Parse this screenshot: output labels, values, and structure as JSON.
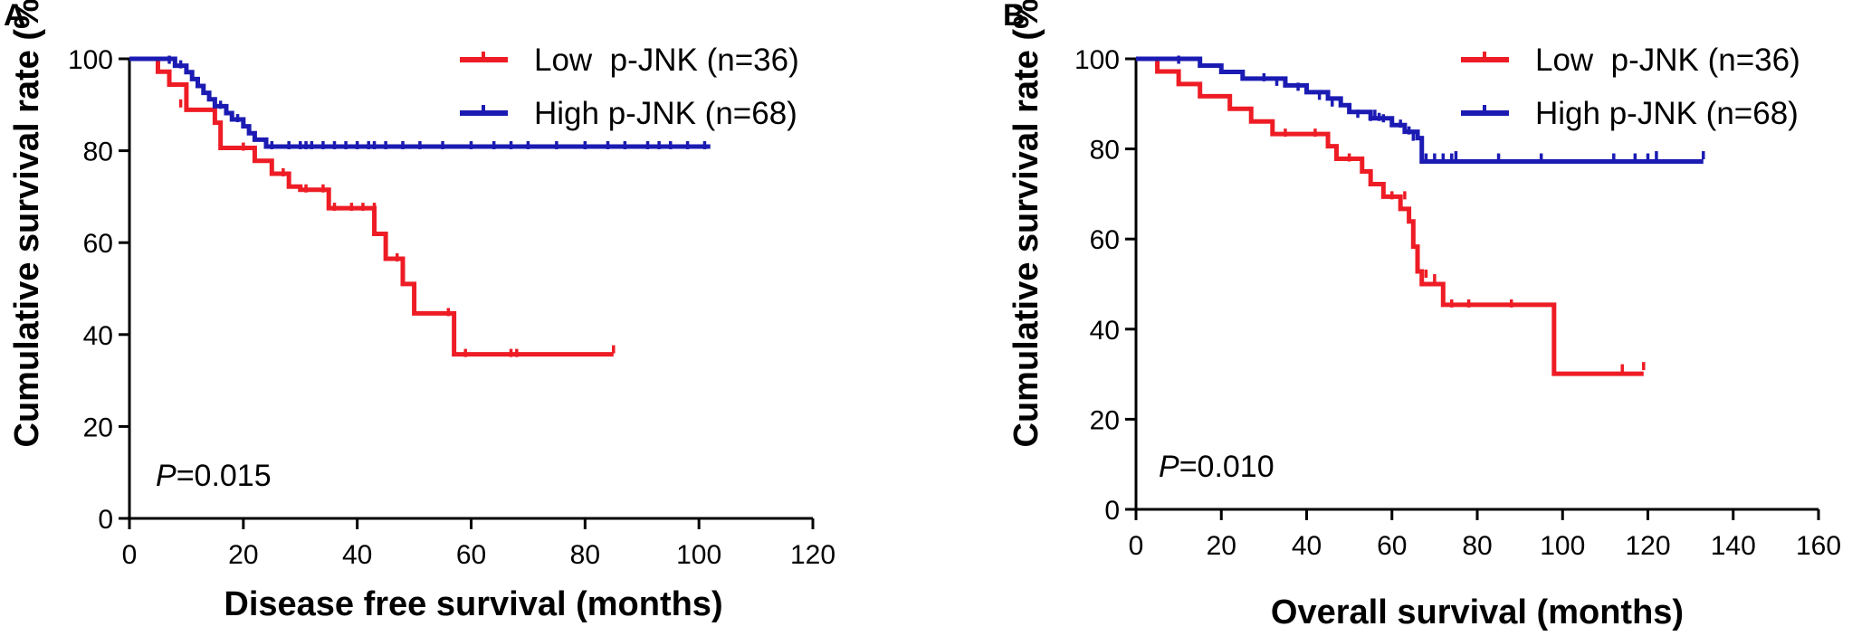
{
  "chart_data": [
    {
      "type": "line",
      "subtype": "kaplan-meier",
      "panel": "A",
      "xlabel": "Disease free survival (months)",
      "ylabel": "Cumulative survival rate (%)",
      "xlim": [
        0,
        120
      ],
      "ylim": [
        0,
        100
      ],
      "xticks": [
        0,
        20,
        40,
        60,
        80,
        100,
        120
      ],
      "yticks": [
        0,
        20,
        40,
        60,
        80,
        100
      ],
      "grid": false,
      "legend_position": "top-right",
      "annotation": {
        "italic": "P",
        "rest": "=0.015"
      },
      "series": [
        {
          "name": "Low  p-JNK (n=36)",
          "color": "#ee1c25",
          "steps": [
            [
              0,
              100
            ],
            [
              5,
              97.2
            ],
            [
              7,
              94.4
            ],
            [
              10,
              88.9
            ],
            [
              15,
              86.1
            ],
            [
              16,
              80.6
            ],
            [
              22,
              77.8
            ],
            [
              25,
              75.0
            ],
            [
              28,
              72.2
            ],
            [
              30,
              71.5
            ],
            [
              35,
              67.5
            ],
            [
              43,
              61.9
            ],
            [
              45,
              56.5
            ],
            [
              48,
              51.0
            ],
            [
              50,
              44.6
            ],
            [
              57,
              35.7
            ],
            [
              85,
              35.7
            ]
          ],
          "censored": [
            [
              9,
              90
            ],
            [
              20,
              80.6
            ],
            [
              27,
              75.0
            ],
            [
              31,
              71.5
            ],
            [
              34,
              71.5
            ],
            [
              36,
              67.5
            ],
            [
              39,
              67.5
            ],
            [
              41,
              67.5
            ],
            [
              43,
              67.5
            ],
            [
              47,
              56.5
            ],
            [
              56,
              44.6
            ],
            [
              59,
              35.7
            ],
            [
              67,
              35.7
            ],
            [
              68,
              35.7
            ],
            [
              85,
              36.5
            ]
          ]
        },
        {
          "name": "High p-JNK (n=68)",
          "color": "#1b1bb3",
          "steps": [
            [
              0,
              100
            ],
            [
              6,
              100
            ],
            [
              8,
              98.5
            ],
            [
              10,
              97.1
            ],
            [
              11,
              95.6
            ],
            [
              12,
              94.1
            ],
            [
              13,
              92.6
            ],
            [
              14,
              91.2
            ],
            [
              15,
              89.7
            ],
            [
              17,
              88.2
            ],
            [
              18,
              86.8
            ],
            [
              20,
              85.3
            ],
            [
              21,
              83.8
            ],
            [
              22,
              82.4
            ],
            [
              24,
              80.9
            ],
            [
              102,
              80.9
            ]
          ],
          "censored": [
            [
              7,
              99.5
            ],
            [
              9,
              98.5
            ],
            [
              16,
              89.7
            ],
            [
              19,
              86.8
            ],
            [
              25,
              80.9
            ],
            [
              28,
              80.9
            ],
            [
              30,
              80.9
            ],
            [
              31,
              80.9
            ],
            [
              32,
              80.9
            ],
            [
              34,
              80.9
            ],
            [
              36,
              80.9
            ],
            [
              38,
              80.9
            ],
            [
              40,
              80.9
            ],
            [
              42,
              80.9
            ],
            [
              43,
              80.9
            ],
            [
              45,
              80.9
            ],
            [
              48,
              80.9
            ],
            [
              51,
              80.9
            ],
            [
              55,
              80.9
            ],
            [
              60,
              80.9
            ],
            [
              64,
              80.9
            ],
            [
              67,
              80.9
            ],
            [
              70,
              80.9
            ],
            [
              75,
              80.9
            ],
            [
              80,
              80.9
            ],
            [
              84,
              80.9
            ],
            [
              87,
              80.9
            ],
            [
              91,
              80.9
            ],
            [
              93,
              80.9
            ],
            [
              95,
              80.9
            ],
            [
              98,
              80.9
            ],
            [
              101,
              80.9
            ]
          ]
        }
      ]
    },
    {
      "type": "line",
      "subtype": "kaplan-meier",
      "panel": "B",
      "xlabel": "Overall survival (months)",
      "ylabel": "Cumulative survival rate (%)",
      "xlim": [
        0,
        160
      ],
      "ylim": [
        0,
        100
      ],
      "xticks": [
        0,
        20,
        40,
        60,
        80,
        100,
        120,
        140,
        160
      ],
      "yticks": [
        0,
        20,
        40,
        60,
        80,
        100
      ],
      "grid": false,
      "legend_position": "top-right",
      "annotation": {
        "italic": "P",
        "rest": "=0.010"
      },
      "series": [
        {
          "name": "Low  p-JNK (n=36)",
          "color": "#ee1c25",
          "steps": [
            [
              0,
              100
            ],
            [
              5,
              97.2
            ],
            [
              10,
              94.4
            ],
            [
              15,
              91.7
            ],
            [
              22,
              88.9
            ],
            [
              27,
              86.1
            ],
            [
              32,
              83.3
            ],
            [
              45,
              80.6
            ],
            [
              47,
              77.8
            ],
            [
              53,
              75.0
            ],
            [
              55,
              72.2
            ],
            [
              58,
              69.4
            ],
            [
              62,
              66.7
            ],
            [
              64,
              63.9
            ],
            [
              65,
              58.3
            ],
            [
              66,
              52.8
            ],
            [
              67,
              50.0
            ],
            [
              72,
              45.4
            ],
            [
              98,
              30.1
            ],
            [
              119,
              30.1
            ]
          ],
          "censored": [
            [
              35,
              83.3
            ],
            [
              42,
              83.3
            ],
            [
              50,
              77.8
            ],
            [
              60,
              69.4
            ],
            [
              63,
              69.4
            ],
            [
              68,
              52.0
            ],
            [
              70,
              51.0
            ],
            [
              74,
              45.4
            ],
            [
              78,
              45.4
            ],
            [
              88,
              45.4
            ],
            [
              114,
              31.0
            ],
            [
              119,
              31.5
            ]
          ]
        },
        {
          "name": "High p-JNK (n=68)",
          "color": "#1b1bb3",
          "steps": [
            [
              0,
              100
            ],
            [
              15,
              98.5
            ],
            [
              20,
              97.1
            ],
            [
              25,
              95.6
            ],
            [
              35,
              94.1
            ],
            [
              40,
              92.6
            ],
            [
              45,
              91.2
            ],
            [
              48,
              89.7
            ],
            [
              50,
              88.2
            ],
            [
              55,
              86.8
            ],
            [
              60,
              85.3
            ],
            [
              63,
              83.8
            ],
            [
              66,
              82.4
            ],
            [
              67,
              77.2
            ],
            [
              133,
              77.2
            ]
          ],
          "censored": [
            [
              10,
              99.5
            ],
            [
              30,
              95.6
            ],
            [
              33,
              94.6
            ],
            [
              38,
              93.5
            ],
            [
              43,
              91.5
            ],
            [
              46,
              90.0
            ],
            [
              52,
              87.5
            ],
            [
              55,
              86.8
            ],
            [
              56,
              87.5
            ],
            [
              57,
              86.8
            ],
            [
              58,
              86.5
            ],
            [
              60,
              86.0
            ],
            [
              62,
              85.3
            ],
            [
              64,
              83.8
            ],
            [
              65,
              82.4
            ],
            [
              68,
              77.8
            ],
            [
              70,
              77.8
            ],
            [
              72,
              77.8
            ],
            [
              74,
              77.8
            ],
            [
              75,
              78.3
            ],
            [
              85,
              77.8
            ],
            [
              95,
              77.8
            ],
            [
              112,
              77.8
            ],
            [
              117,
              77.8
            ],
            [
              120,
              77.8
            ],
            [
              122,
              78.3
            ],
            [
              133,
              78.3
            ]
          ]
        }
      ]
    }
  ]
}
